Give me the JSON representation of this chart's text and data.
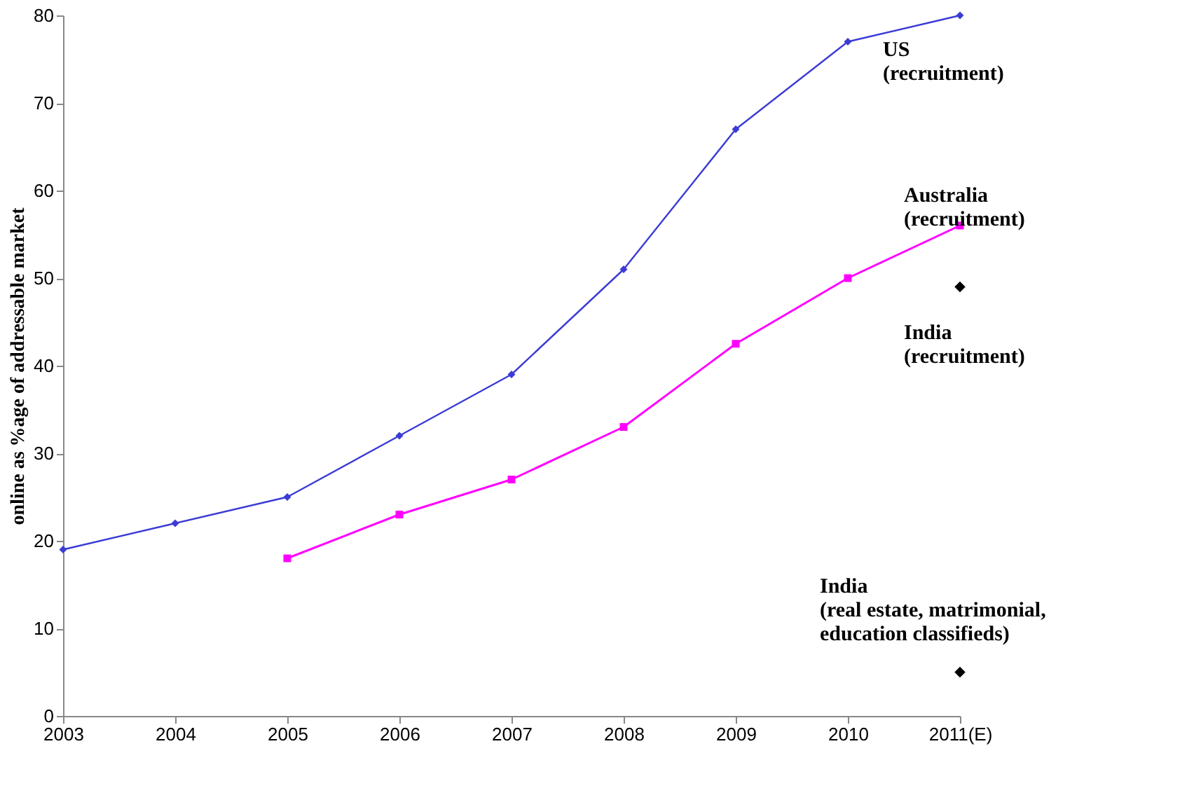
{
  "chart_data": {
    "type": "line",
    "ylabel": "online as %age of addressable market",
    "categories": [
      "2003",
      "2004",
      "2005",
      "2006",
      "2007",
      "2008",
      "2009",
      "2010",
      "2011(E)"
    ],
    "series": [
      {
        "name": "US\n(recruitment)",
        "color": "#3b3bd6",
        "marker": "diamond",
        "values": [
          19,
          22,
          25,
          32,
          39,
          51,
          67,
          77,
          80
        ]
      },
      {
        "name": "Australia\n(recruitment)",
        "color": "#ff00ff",
        "marker": "square",
        "values": [
          null,
          null,
          18,
          23,
          27,
          33,
          42.5,
          50,
          56
        ]
      },
      {
        "name": "India\n(recruitment)",
        "type": "scatter",
        "color": "#000000",
        "marker": "diamond",
        "x": [
          "2011(E)"
        ],
        "values": [
          49
        ]
      },
      {
        "name": "India\n(real estate, matrimonial,\neducation classifieds)",
        "type": "scatter",
        "color": "#000000",
        "marker": "diamond",
        "x": [
          "2011(E)"
        ],
        "values": [
          5
        ]
      }
    ],
    "ylim": [
      0,
      80
    ],
    "yticks": [
      0,
      10,
      20,
      30,
      40,
      50,
      60,
      70,
      80
    ],
    "grid": false,
    "legend": false,
    "line_style": "solid"
  }
}
